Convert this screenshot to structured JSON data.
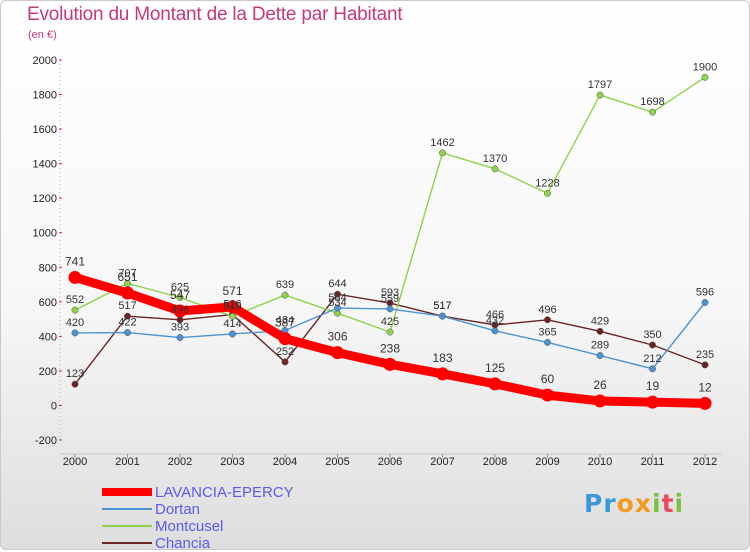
{
  "title": "Evolution du Montant de la Dette par Habitant",
  "unit": "(en €)",
  "logo": {
    "text": "Proxiti",
    "letters": [
      {
        "ch": "P",
        "color": "#3a9ad9"
      },
      {
        "ch": "r",
        "color": "#3a9ad9"
      },
      {
        "ch": "o",
        "color": "#f39a1f"
      },
      {
        "ch": "x",
        "color": "#f39a1f"
      },
      {
        "ch": "i",
        "color": "#7cc242"
      },
      {
        "ch": "t",
        "color": "#e84a5f"
      },
      {
        "ch": "i",
        "color": "#7cc242"
      }
    ]
  },
  "chart_data": {
    "type": "line",
    "x": [
      "2000",
      "2001",
      "2002",
      "2003",
      "2004",
      "2005",
      "2006",
      "2007",
      "2008",
      "2009",
      "2010",
      "2011",
      "2012"
    ],
    "ylim": [
      -200,
      2000
    ],
    "yticks": [
      "-200",
      "0",
      "200",
      "400",
      "600",
      "800",
      "1000",
      "1200",
      "1400",
      "1600",
      "1800",
      "2000"
    ],
    "grid": false,
    "legend_position": "bottom-left",
    "series": [
      {
        "name": "LAVANCIA-EPERCY",
        "color": "#ff0000",
        "values": [
          741,
          651,
          547,
          571,
          387,
          306,
          238,
          183,
          125,
          60,
          26,
          19,
          12
        ],
        "labels": [
          "741",
          "651",
          "547",
          "571",
          "387",
          "306",
          "238",
          "183",
          "125",
          "60",
          "26",
          "19",
          "12"
        ],
        "label_pos": [
          "above",
          "above",
          "above",
          "above",
          "above",
          "above",
          "above",
          "above",
          "above",
          "above",
          "above",
          "above",
          "above"
        ]
      },
      {
        "name": "Dortan",
        "color": "#4d93d1",
        "values": [
          420,
          422,
          393,
          414,
          434,
          564,
          559,
          517,
          432,
          365,
          289,
          212,
          596
        ],
        "labels": [
          "420",
          "422",
          "393",
          "414",
          "434",
          "564",
          "559",
          "517",
          "432",
          "365",
          "289",
          "212",
          "596"
        ],
        "label_pos": [
          "above",
          "above",
          "above",
          "above",
          "above",
          "above",
          "above",
          "above",
          "above",
          "above",
          "above",
          "above",
          "above"
        ]
      },
      {
        "name": "Montcusel",
        "color": "#8dd34b",
        "values": [
          552,
          707,
          625,
          516,
          639,
          534,
          425,
          1462,
          1370,
          1228,
          1797,
          1698,
          1900
        ],
        "labels": [
          "552",
          "707",
          "625",
          "516",
          "639",
          "534",
          "425",
          "1462",
          "1370",
          "1228",
          "1797",
          "1698",
          "1900"
        ],
        "label_pos": [
          "above",
          "above",
          "above",
          "above",
          "above",
          "above",
          "above",
          "above",
          "above",
          "above",
          "above",
          "above",
          "above"
        ]
      },
      {
        "name": "Chancia",
        "color": "#6b2323",
        "values": [
          123,
          517,
          496,
          526,
          252,
          644,
          593,
          517,
          466,
          496,
          429,
          350,
          235
        ],
        "labels": [
          "123",
          "517",
          "496",
          "526",
          "252",
          "644",
          "593",
          "517",
          "466",
          "496",
          "429",
          "350",
          "235"
        ],
        "label_pos": [
          "above",
          "above",
          "above",
          "above",
          "above",
          "above",
          "above",
          "above",
          "above",
          "above",
          "above",
          "above",
          "above"
        ]
      }
    ]
  }
}
